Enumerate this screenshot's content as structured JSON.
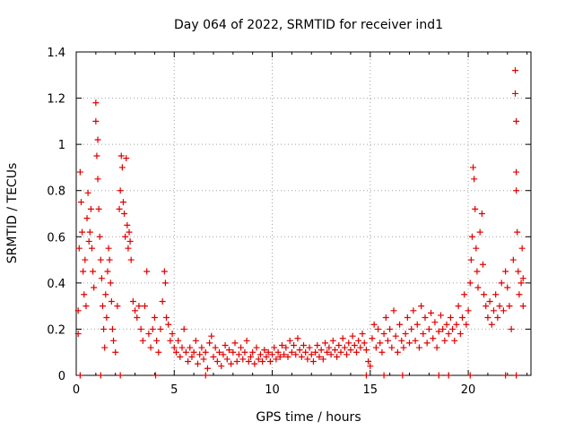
{
  "chart_data": {
    "type": "scatter",
    "title": "Day 064 of 2022, SRMTID for receiver ind1",
    "xlabel": "GPS time / hours",
    "ylabel": "SRMTID / TECUs",
    "xlim": [
      0,
      23.2
    ],
    "ylim": [
      0,
      1.4
    ],
    "grid": true,
    "marker": "plus",
    "color": "#e00000",
    "x_ticks": [
      {
        "value": 0,
        "label": "0"
      },
      {
        "value": 5,
        "label": "5"
      },
      {
        "value": 10,
        "label": "10"
      },
      {
        "value": 15,
        "label": "15"
      },
      {
        "value": 20,
        "label": "20"
      }
    ],
    "y_ticks": [
      {
        "value": 0,
        "label": "0"
      },
      {
        "value": 0.2,
        "label": "0.2"
      },
      {
        "value": 0.4,
        "label": "0.4"
      },
      {
        "value": 0.6,
        "label": "0.6"
      },
      {
        "value": 0.8,
        "label": "0.8"
      },
      {
        "value": 1.0,
        "label": "1"
      },
      {
        "value": 1.2,
        "label": "1.2"
      },
      {
        "value": 1.4,
        "label": "1.4"
      }
    ],
    "series": [
      {
        "name": "SRMTID",
        "points": [
          [
            0.1,
            0.28
          ],
          [
            0.1,
            0.18
          ],
          [
            0.15,
            0.55
          ],
          [
            0.2,
            0.88
          ],
          [
            0.25,
            0.75
          ],
          [
            0.3,
            0.62
          ],
          [
            0.35,
            0.45
          ],
          [
            0.4,
            0.35
          ],
          [
            0.45,
            0.5
          ],
          [
            0.5,
            0.3
          ],
          [
            0.55,
            0.68
          ],
          [
            0.6,
            0.79
          ],
          [
            0.65,
            0.58
          ],
          [
            0.7,
            0.62
          ],
          [
            0.75,
            0.72
          ],
          [
            0.8,
            0.55
          ],
          [
            0.85,
            0.45
          ],
          [
            0.9,
            0.38
          ],
          [
            1.0,
            1.18
          ],
          [
            1.0,
            1.1
          ],
          [
            1.05,
            0.95
          ],
          [
            1.1,
            0.85
          ],
          [
            1.1,
            1.02
          ],
          [
            1.15,
            0.72
          ],
          [
            1.2,
            0.6
          ],
          [
            1.25,
            0.5
          ],
          [
            1.3,
            0.42
          ],
          [
            1.35,
            0.3
          ],
          [
            1.4,
            0.2
          ],
          [
            1.45,
            0.12
          ],
          [
            1.5,
            0.35
          ],
          [
            1.55,
            0.25
          ],
          [
            1.6,
            0.45
          ],
          [
            1.65,
            0.55
          ],
          [
            1.7,
            0.5
          ],
          [
            1.75,
            0.4
          ],
          [
            1.8,
            0.32
          ],
          [
            1.85,
            0.2
          ],
          [
            1.9,
            0.15
          ],
          [
            2.0,
            0.1
          ],
          [
            2.1,
            0.3
          ],
          [
            2.2,
            0.72
          ],
          [
            2.25,
            0.8
          ],
          [
            2.3,
            0.95
          ],
          [
            2.35,
            0.9
          ],
          [
            2.4,
            0.75
          ],
          [
            2.45,
            0.7
          ],
          [
            2.5,
            0.6
          ],
          [
            2.55,
            0.94
          ],
          [
            2.6,
            0.65
          ],
          [
            2.65,
            0.55
          ],
          [
            2.7,
            0.62
          ],
          [
            2.75,
            0.58
          ],
          [
            2.8,
            0.5
          ],
          [
            2.9,
            0.32
          ],
          [
            3.0,
            0.28
          ],
          [
            3.1,
            0.25
          ],
          [
            3.2,
            0.3
          ],
          [
            3.3,
            0.2
          ],
          [
            3.4,
            0.15
          ],
          [
            3.5,
            0.3
          ],
          [
            3.6,
            0.45
          ],
          [
            3.7,
            0.18
          ],
          [
            3.8,
            0.12
          ],
          [
            3.9,
            0.2
          ],
          [
            4.0,
            0.25
          ],
          [
            4.1,
            0.15
          ],
          [
            4.2,
            0.1
          ],
          [
            4.3,
            0.2
          ],
          [
            4.4,
            0.32
          ],
          [
            4.5,
            0.45
          ],
          [
            4.55,
            0.4
          ],
          [
            4.6,
            0.25
          ],
          [
            4.7,
            0.22
          ],
          [
            4.8,
            0.15
          ],
          [
            4.9,
            0.18
          ],
          [
            5.0,
            0.12
          ],
          [
            5.1,
            0.1
          ],
          [
            5.2,
            0.15
          ],
          [
            5.3,
            0.08
          ],
          [
            5.4,
            0.12
          ],
          [
            5.5,
            0.2
          ],
          [
            5.6,
            0.1
          ],
          [
            5.7,
            0.06
          ],
          [
            5.8,
            0.12
          ],
          [
            5.9,
            0.08
          ],
          [
            6.0,
            0.1
          ],
          [
            6.1,
            0.15
          ],
          [
            6.2,
            0.05
          ],
          [
            6.3,
            0.09
          ],
          [
            6.4,
            0.12
          ],
          [
            6.5,
            0.07
          ],
          [
            6.6,
            0.1
          ],
          [
            6.7,
            0.03
          ],
          [
            6.8,
            0.14
          ],
          [
            6.9,
            0.17
          ],
          [
            7.0,
            0.08
          ],
          [
            7.1,
            0.12
          ],
          [
            7.2,
            0.06
          ],
          [
            7.3,
            0.1
          ],
          [
            7.4,
            0.04
          ],
          [
            7.5,
            0.09
          ],
          [
            7.6,
            0.13
          ],
          [
            7.7,
            0.07
          ],
          [
            7.8,
            0.11
          ],
          [
            7.9,
            0.05
          ],
          [
            8.0,
            0.1
          ],
          [
            8.1,
            0.14
          ],
          [
            8.2,
            0.06
          ],
          [
            8.3,
            0.09
          ],
          [
            8.4,
            0.12
          ],
          [
            8.5,
            0.07
          ],
          [
            8.6,
            0.1
          ],
          [
            8.7,
            0.15
          ],
          [
            8.8,
            0.06
          ],
          [
            8.9,
            0.08
          ],
          [
            9.0,
            0.1
          ],
          [
            9.1,
            0.05
          ],
          [
            9.2,
            0.12
          ],
          [
            9.3,
            0.07
          ],
          [
            9.4,
            0.09
          ],
          [
            9.5,
            0.06
          ],
          [
            9.6,
            0.11
          ],
          [
            9.7,
            0.08
          ],
          [
            9.8,
            0.1
          ],
          [
            9.9,
            0.06
          ],
          [
            10.0,
            0.09
          ],
          [
            10.1,
            0.12
          ],
          [
            10.2,
            0.07
          ],
          [
            10.3,
            0.1
          ],
          [
            10.4,
            0.08
          ],
          [
            10.5,
            0.13
          ],
          [
            10.6,
            0.09
          ],
          [
            10.7,
            0.12
          ],
          [
            10.8,
            0.08
          ],
          [
            10.9,
            0.15
          ],
          [
            11.0,
            0.1
          ],
          [
            11.1,
            0.13
          ],
          [
            11.2,
            0.09
          ],
          [
            11.3,
            0.16
          ],
          [
            11.4,
            0.11
          ],
          [
            11.5,
            0.08
          ],
          [
            11.6,
            0.13
          ],
          [
            11.7,
            0.1
          ],
          [
            11.8,
            0.07
          ],
          [
            11.9,
            0.12
          ],
          [
            12.0,
            0.09
          ],
          [
            12.1,
            0.06
          ],
          [
            12.2,
            0.1
          ],
          [
            12.3,
            0.13
          ],
          [
            12.4,
            0.08
          ],
          [
            12.5,
            0.11
          ],
          [
            12.6,
            0.07
          ],
          [
            12.7,
            0.14
          ],
          [
            12.8,
            0.1
          ],
          [
            12.9,
            0.12
          ],
          [
            13.0,
            0.09
          ],
          [
            13.1,
            0.15
          ],
          [
            13.2,
            0.11
          ],
          [
            13.3,
            0.08
          ],
          [
            13.4,
            0.13
          ],
          [
            13.5,
            0.1
          ],
          [
            13.6,
            0.16
          ],
          [
            13.7,
            0.12
          ],
          [
            13.8,
            0.09
          ],
          [
            13.9,
            0.14
          ],
          [
            14.0,
            0.11
          ],
          [
            14.1,
            0.17
          ],
          [
            14.2,
            0.13
          ],
          [
            14.3,
            0.1
          ],
          [
            14.4,
            0.15
          ],
          [
            14.5,
            0.12
          ],
          [
            14.6,
            0.18
          ],
          [
            14.7,
            0.14
          ],
          [
            14.8,
            0.11
          ],
          [
            14.9,
            0.06
          ],
          [
            15.0,
            0.04
          ],
          [
            15.1,
            0.16
          ],
          [
            15.2,
            0.22
          ],
          [
            15.3,
            0.12
          ],
          [
            15.4,
            0.2
          ],
          [
            15.5,
            0.14
          ],
          [
            15.6,
            0.1
          ],
          [
            15.7,
            0.18
          ],
          [
            15.8,
            0.25
          ],
          [
            15.9,
            0.15
          ],
          [
            16.0,
            0.2
          ],
          [
            16.1,
            0.12
          ],
          [
            16.2,
            0.28
          ],
          [
            16.3,
            0.17
          ],
          [
            16.4,
            0.1
          ],
          [
            16.5,
            0.22
          ],
          [
            16.6,
            0.15
          ],
          [
            16.7,
            0.12
          ],
          [
            16.8,
            0.18
          ],
          [
            16.9,
            0.25
          ],
          [
            17.0,
            0.14
          ],
          [
            17.1,
            0.2
          ],
          [
            17.2,
            0.28
          ],
          [
            17.3,
            0.15
          ],
          [
            17.4,
            0.22
          ],
          [
            17.5,
            0.12
          ],
          [
            17.6,
            0.3
          ],
          [
            17.7,
            0.18
          ],
          [
            17.8,
            0.25
          ],
          [
            17.9,
            0.14
          ],
          [
            18.0,
            0.2
          ],
          [
            18.1,
            0.27
          ],
          [
            18.2,
            0.16
          ],
          [
            18.3,
            0.23
          ],
          [
            18.4,
            0.12
          ],
          [
            18.5,
            0.19
          ],
          [
            18.6,
            0.26
          ],
          [
            18.7,
            0.2
          ],
          [
            18.8,
            0.15
          ],
          [
            18.9,
            0.22
          ],
          [
            19.0,
            0.18
          ],
          [
            19.1,
            0.25
          ],
          [
            19.2,
            0.2
          ],
          [
            19.3,
            0.15
          ],
          [
            19.4,
            0.22
          ],
          [
            19.5,
            0.3
          ],
          [
            19.6,
            0.18
          ],
          [
            19.7,
            0.25
          ],
          [
            19.8,
            0.35
          ],
          [
            19.9,
            0.22
          ],
          [
            20.0,
            0.28
          ],
          [
            20.1,
            0.4
          ],
          [
            20.15,
            0.5
          ],
          [
            20.2,
            0.6
          ],
          [
            20.25,
            0.9
          ],
          [
            20.3,
            0.85
          ],
          [
            20.35,
            0.72
          ],
          [
            20.4,
            0.55
          ],
          [
            20.45,
            0.45
          ],
          [
            20.5,
            0.38
          ],
          [
            20.6,
            0.62
          ],
          [
            20.7,
            0.7
          ],
          [
            20.75,
            0.48
          ],
          [
            20.8,
            0.35
          ],
          [
            20.9,
            0.3
          ],
          [
            21.0,
            0.25
          ],
          [
            21.1,
            0.32
          ],
          [
            21.2,
            0.22
          ],
          [
            21.3,
            0.28
          ],
          [
            21.4,
            0.35
          ],
          [
            21.5,
            0.25
          ],
          [
            21.6,
            0.3
          ],
          [
            21.7,
            0.4
          ],
          [
            21.8,
            0.28
          ],
          [
            21.9,
            0.45
          ],
          [
            22.0,
            0.38
          ],
          [
            22.1,
            0.3
          ],
          [
            22.2,
            0.2
          ],
          [
            22.3,
            0.5
          ],
          [
            22.4,
            1.32
          ],
          [
            22.4,
            1.22
          ],
          [
            22.45,
            1.1
          ],
          [
            22.45,
            0.88
          ],
          [
            22.45,
            0.8
          ],
          [
            22.5,
            0.62
          ],
          [
            22.55,
            0.45
          ],
          [
            22.6,
            0.35
          ],
          [
            22.7,
            0.4
          ],
          [
            22.75,
            0.55
          ],
          [
            22.8,
            0.3
          ],
          [
            22.8,
            0.42
          ]
        ]
      }
    ],
    "zero_markers_x": [
      0.2,
      1.25,
      2.25,
      4.05,
      6.6,
      14.8,
      15.7,
      16.65,
      18.5,
      19.0,
      20.1,
      21.9,
      22.45
    ]
  }
}
